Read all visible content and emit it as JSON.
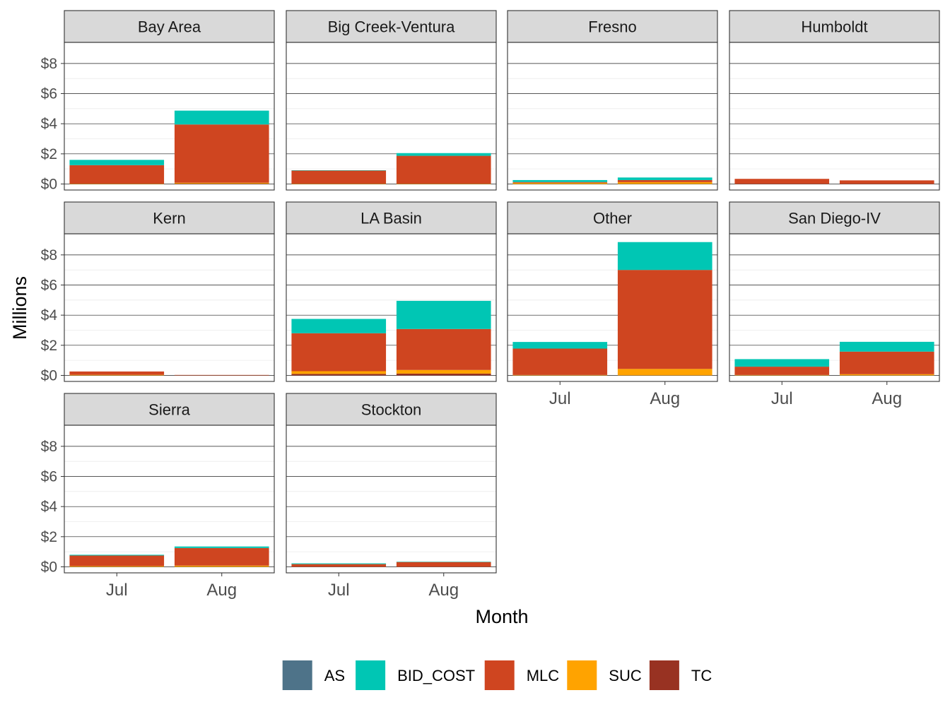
{
  "chart_data": {
    "type": "bar",
    "stacked": true,
    "facet": "wrap",
    "xlabel": "Month",
    "ylabel": "Millions",
    "ylim": [
      -0.4,
      9.4
    ],
    "y_ticks": [
      0,
      2,
      4,
      6,
      8
    ],
    "y_tick_labels": [
      "$0",
      "$2",
      "$4",
      "$6",
      "$8"
    ],
    "categories": [
      "Jul",
      "Aug"
    ],
    "stack_order": [
      "TC",
      "SUC",
      "MLC",
      "BID_COST",
      "AS"
    ],
    "legend": {
      "position": "bottom",
      "entries": [
        {
          "name": "AS",
          "color": "#4e7389"
        },
        {
          "name": "BID_COST",
          "color": "#00c6b4"
        },
        {
          "name": "MLC",
          "color": "#cf4520"
        },
        {
          "name": "SUC",
          "color": "#ffa300"
        },
        {
          "name": "TC",
          "color": "#983222"
        }
      ]
    },
    "panels": [
      {
        "title": "Bay Area",
        "values": {
          "Jul": {
            "TC": 0.0,
            "SUC": 0.02,
            "MLC": 1.23,
            "BID_COST": 0.35,
            "AS": 0.0
          },
          "Aug": {
            "TC": 0.02,
            "SUC": 0.06,
            "MLC": 3.87,
            "BID_COST": 0.92,
            "AS": 0.0
          }
        }
      },
      {
        "title": "Big Creek-Ventura",
        "values": {
          "Jul": {
            "TC": 0.0,
            "SUC": 0.02,
            "MLC": 0.87,
            "BID_COST": 0.02,
            "AS": 0.0
          },
          "Aug": {
            "TC": 0.0,
            "SUC": 0.02,
            "MLC": 1.85,
            "BID_COST": 0.18,
            "AS": 0.0
          }
        }
      },
      {
        "title": "Fresno",
        "values": {
          "Jul": {
            "TC": 0.0,
            "SUC": 0.08,
            "MLC": 0.05,
            "BID_COST": 0.13,
            "AS": 0.0
          },
          "Aug": {
            "TC": 0.0,
            "SUC": 0.12,
            "MLC": 0.14,
            "BID_COST": 0.17,
            "AS": 0.0
          }
        }
      },
      {
        "title": "Humboldt",
        "values": {
          "Jul": {
            "TC": 0.0,
            "SUC": 0.0,
            "MLC": 0.34,
            "BID_COST": 0.0,
            "AS": 0.0
          },
          "Aug": {
            "TC": 0.0,
            "SUC": 0.0,
            "MLC": 0.24,
            "BID_COST": 0.0,
            "AS": 0.0
          }
        }
      },
      {
        "title": "Kern",
        "values": {
          "Jul": {
            "TC": 0.0,
            "SUC": 0.04,
            "MLC": 0.22,
            "BID_COST": 0.0,
            "AS": 0.0
          },
          "Aug": {
            "TC": 0.0,
            "SUC": 0.0,
            "MLC": 0.03,
            "BID_COST": 0.0,
            "AS": 0.0
          }
        }
      },
      {
        "title": "LA Basin",
        "values": {
          "Jul": {
            "TC": 0.1,
            "SUC": 0.18,
            "MLC": 2.52,
            "BID_COST": 0.95,
            "AS": 0.0
          },
          "Aug": {
            "TC": 0.12,
            "SUC": 0.24,
            "MLC": 2.72,
            "BID_COST": 1.87,
            "AS": 0.0
          }
        }
      },
      {
        "title": "Other",
        "values": {
          "Jul": {
            "TC": 0.0,
            "SUC": 0.03,
            "MLC": 1.75,
            "BID_COST": 0.44,
            "AS": 0.0
          },
          "Aug": {
            "TC": 0.0,
            "SUC": 0.43,
            "MLC": 6.57,
            "BID_COST": 1.85,
            "AS": 0.0
          }
        }
      },
      {
        "title": "San Diego-IV",
        "values": {
          "Jul": {
            "TC": 0.0,
            "SUC": 0.03,
            "MLC": 0.55,
            "BID_COST": 0.5,
            "AS": 0.0
          },
          "Aug": {
            "TC": 0.0,
            "SUC": 0.08,
            "MLC": 1.5,
            "BID_COST": 0.65,
            "AS": 0.0
          }
        }
      },
      {
        "title": "Sierra",
        "values": {
          "Jul": {
            "TC": 0.0,
            "SUC": 0.05,
            "MLC": 0.7,
            "BID_COST": 0.05,
            "AS": 0.0
          },
          "Aug": {
            "TC": 0.0,
            "SUC": 0.08,
            "MLC": 1.17,
            "BID_COST": 0.1,
            "AS": 0.0
          }
        }
      },
      {
        "title": "Stockton",
        "values": {
          "Jul": {
            "TC": 0.0,
            "SUC": 0.0,
            "MLC": 0.18,
            "BID_COST": 0.05,
            "AS": 0.0
          },
          "Aug": {
            "TC": 0.0,
            "SUC": 0.0,
            "MLC": 0.32,
            "BID_COST": 0.02,
            "AS": 0.0
          }
        }
      }
    ]
  }
}
